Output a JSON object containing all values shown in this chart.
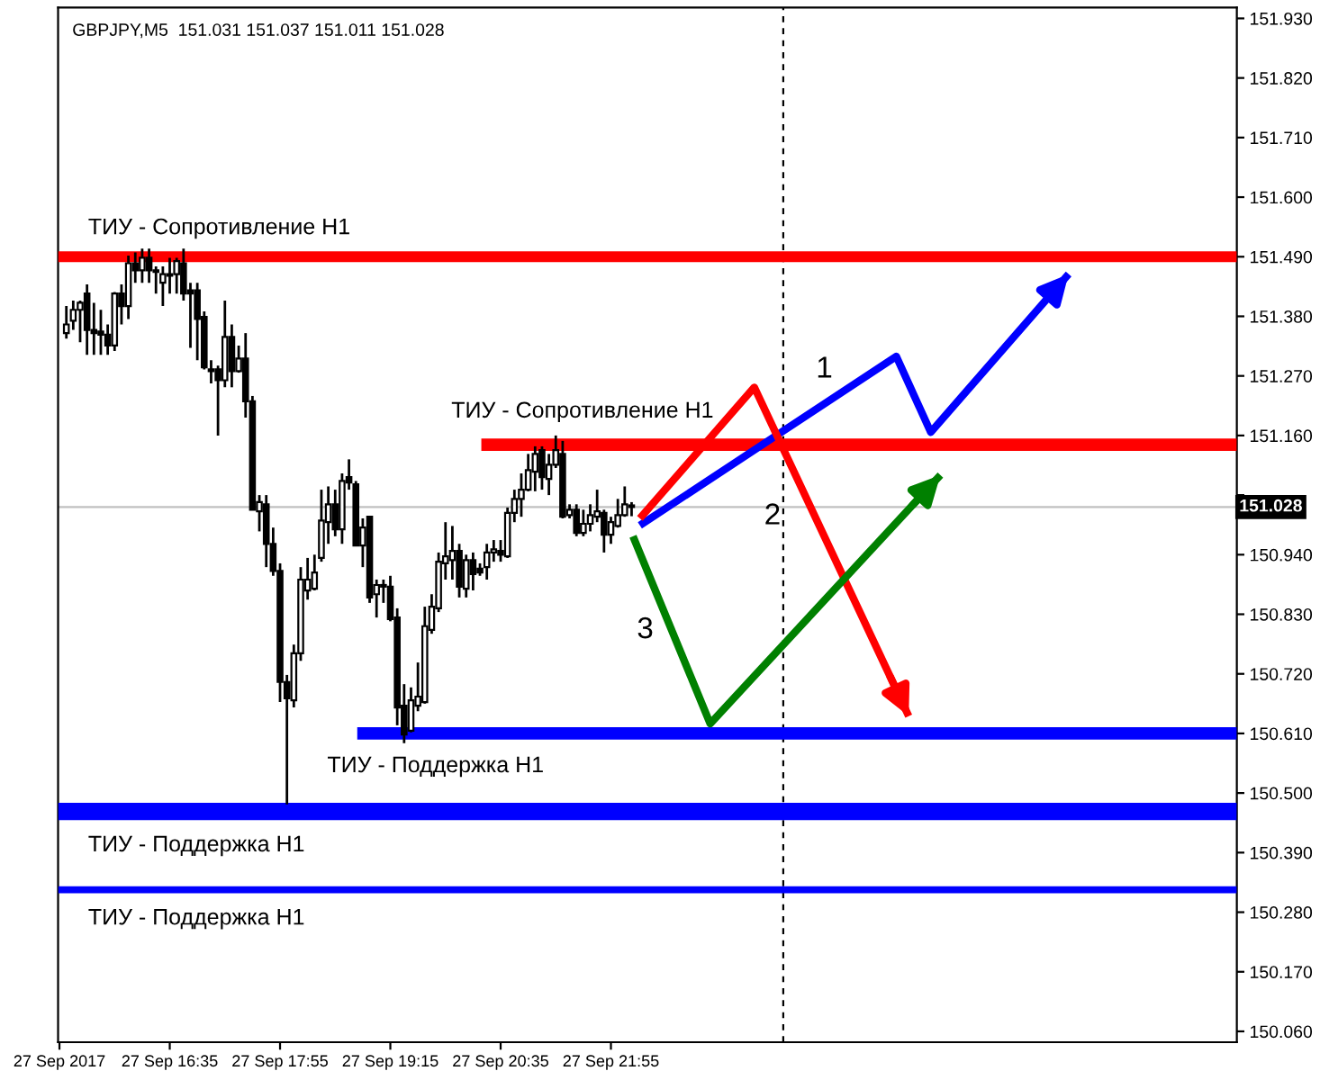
{
  "chart_data": {
    "type": "candlestick",
    "title": "GBPJPY,M5  151.031 151.037 151.011 151.028",
    "series": [
      {
        "color": "#000000",
        "x": [
          "2017-09-27T15:20",
          "2017-09-27T15:25",
          "2017-09-27T15:30",
          "2017-09-27T15:35",
          "2017-09-27T15:40",
          "2017-09-27T15:45",
          "2017-09-27T15:50",
          "2017-09-27T15:55",
          "2017-09-27T16:00",
          "2017-09-27T16:05",
          "2017-09-27T16:10",
          "2017-09-27T16:15",
          "2017-09-27T16:20",
          "2017-09-27T16:25",
          "2017-09-27T16:30",
          "2017-09-27T16:35",
          "2017-09-27T16:40",
          "2017-09-27T16:45",
          "2017-09-27T16:50",
          "2017-09-27T16:55",
          "2017-09-27T17:00",
          "2017-09-27T17:05",
          "2017-09-27T17:10",
          "2017-09-27T17:15",
          "2017-09-27T17:20",
          "2017-09-27T17:25",
          "2017-09-27T17:30",
          "2017-09-27T17:35",
          "2017-09-27T17:40",
          "2017-09-27T17:45",
          "2017-09-27T17:50",
          "2017-09-27T17:55",
          "2017-09-27T18:00",
          "2017-09-27T18:05",
          "2017-09-27T18:10",
          "2017-09-27T18:15",
          "2017-09-27T18:20",
          "2017-09-27T18:25",
          "2017-09-27T18:30",
          "2017-09-27T18:35",
          "2017-09-27T18:40",
          "2017-09-27T18:45",
          "2017-09-27T18:50",
          "2017-09-27T18:55",
          "2017-09-27T19:00",
          "2017-09-27T19:05",
          "2017-09-27T19:10",
          "2017-09-27T19:15",
          "2017-09-27T19:20",
          "2017-09-27T19:25",
          "2017-09-27T19:30",
          "2017-09-27T19:35",
          "2017-09-27T19:40",
          "2017-09-27T19:45",
          "2017-09-27T19:50",
          "2017-09-27T19:55",
          "2017-09-27T20:00",
          "2017-09-27T20:05",
          "2017-09-27T20:10",
          "2017-09-27T20:15",
          "2017-09-27T20:20",
          "2017-09-27T20:25",
          "2017-09-27T20:30",
          "2017-09-27T20:35",
          "2017-09-27T20:40",
          "2017-09-27T20:45",
          "2017-09-27T20:50",
          "2017-09-27T20:55",
          "2017-09-27T21:00",
          "2017-09-27T21:05",
          "2017-09-27T21:10",
          "2017-09-27T21:15",
          "2017-09-27T21:20",
          "2017-09-27T21:25",
          "2017-09-27T21:30",
          "2017-09-27T21:35",
          "2017-09-27T21:40",
          "2017-09-27T21:45",
          "2017-09-27T21:50",
          "2017-09-27T21:55",
          "2017-09-27T22:00",
          "2017-09-27T22:05",
          "2017-09-27T22:10"
        ],
        "ohlc": [
          [
            151.349,
            151.399,
            151.339,
            151.365
          ],
          [
            151.372,
            151.409,
            151.355,
            151.392
          ],
          [
            151.392,
            151.409,
            151.332,
            151.405
          ],
          [
            151.422,
            151.439,
            151.309,
            151.355
          ],
          [
            151.355,
            151.405,
            151.309,
            151.349
          ],
          [
            151.352,
            151.392,
            151.309,
            151.346
          ],
          [
            151.346,
            151.365,
            151.309,
            151.326
          ],
          [
            151.326,
            151.425,
            151.316,
            151.422
          ],
          [
            151.422,
            151.439,
            151.365,
            151.399
          ],
          [
            151.399,
            151.492,
            151.375,
            151.478
          ],
          [
            151.478,
            151.498,
            151.442,
            151.465
          ],
          [
            151.465,
            151.505,
            151.442,
            151.488
          ],
          [
            151.488,
            151.505,
            151.442,
            151.465
          ],
          [
            151.465,
            151.472,
            151.422,
            151.462
          ],
          [
            151.442,
            151.472,
            151.399,
            151.458
          ],
          [
            151.455,
            151.488,
            151.422,
            151.458
          ],
          [
            151.458,
            151.488,
            151.422,
            151.482
          ],
          [
            151.478,
            151.505,
            151.409,
            151.422
          ],
          [
            151.428,
            151.442,
            151.322,
            151.422
          ],
          [
            151.428,
            151.442,
            151.299,
            151.375
          ],
          [
            151.379,
            151.389,
            151.282,
            151.286
          ],
          [
            151.282,
            151.299,
            151.256,
            151.279
          ],
          [
            151.282,
            151.289,
            151.16,
            151.262
          ],
          [
            151.262,
            151.409,
            151.249,
            151.342
          ],
          [
            151.342,
            151.365,
            151.249,
            151.279
          ],
          [
            151.279,
            151.326,
            151.276,
            151.302
          ],
          [
            151.302,
            151.349,
            151.193,
            151.223
          ],
          [
            151.223,
            151.233,
            151.023,
            151.023
          ],
          [
            151.02,
            151.05,
            150.983,
            151.037
          ],
          [
            151.033,
            151.05,
            150.917,
            150.96
          ],
          [
            150.96,
            150.99,
            150.901,
            150.91
          ],
          [
            150.91,
            150.924,
            150.668,
            150.705
          ],
          [
            150.705,
            150.718,
            150.479,
            150.675
          ],
          [
            150.671,
            150.774,
            150.658,
            150.758
          ],
          [
            150.758,
            150.917,
            150.744,
            150.894
          ],
          [
            150.874,
            150.934,
            150.857,
            150.894
          ],
          [
            150.877,
            150.94,
            150.874,
            150.907
          ],
          [
            150.934,
            151.06,
            150.927,
            151.003
          ],
          [
            151.0,
            151.066,
            150.96,
            151.033
          ],
          [
            151.033,
            151.06,
            150.974,
            150.987
          ],
          [
            150.987,
            151.09,
            150.96,
            151.076
          ],
          [
            151.083,
            151.116,
            151.06,
            151.073
          ],
          [
            151.07,
            151.076,
            150.957,
            150.957
          ],
          [
            150.957,
            151.007,
            150.917,
            150.99
          ],
          [
            151.01,
            151.01,
            150.851,
            150.861
          ],
          [
            150.867,
            150.894,
            150.824,
            150.884
          ],
          [
            150.884,
            150.894,
            150.851,
            150.881
          ],
          [
            150.881,
            150.901,
            150.817,
            150.821
          ],
          [
            150.824,
            150.841,
            150.625,
            150.658
          ],
          [
            150.661,
            150.701,
            150.592,
            150.608
          ],
          [
            150.615,
            150.695,
            150.612,
            150.671
          ],
          [
            150.661,
            150.741,
            150.651,
            150.678
          ],
          [
            150.668,
            150.844,
            150.665,
            150.808
          ],
          [
            150.801,
            150.867,
            150.794,
            150.844
          ],
          [
            150.841,
            150.944,
            150.834,
            150.927
          ],
          [
            150.924,
            151.0,
            150.894,
            150.937
          ],
          [
            150.93,
            150.993,
            150.894,
            150.947
          ],
          [
            150.947,
            150.96,
            150.861,
            150.881
          ],
          [
            150.877,
            150.94,
            150.861,
            150.93
          ],
          [
            150.93,
            150.944,
            150.874,
            150.904
          ],
          [
            150.914,
            150.924,
            150.901,
            150.907
          ],
          [
            150.917,
            150.96,
            150.894,
            150.944
          ],
          [
            150.944,
            150.967,
            150.927,
            150.95
          ],
          [
            150.947,
            150.967,
            150.927,
            150.94
          ],
          [
            150.937,
            151.027,
            150.934,
            151.017
          ],
          [
            151.017,
            151.06,
            151.0,
            151.043
          ],
          [
            151.043,
            151.09,
            151.01,
            151.06
          ],
          [
            151.06,
            151.126,
            151.057,
            151.096
          ],
          [
            151.093,
            151.14,
            151.057,
            151.126
          ],
          [
            151.133,
            151.14,
            151.06,
            151.083
          ],
          [
            151.08,
            151.126,
            151.05,
            151.106
          ],
          [
            151.106,
            151.16,
            151.1,
            151.133
          ],
          [
            151.126,
            151.15,
            151.007,
            151.01
          ],
          [
            151.013,
            151.033,
            151.007,
            151.023
          ],
          [
            151.023,
            151.033,
            150.974,
            150.98
          ],
          [
            150.98,
            151.023,
            150.974,
            150.997
          ],
          [
            150.997,
            151.033,
            150.983,
            151.013
          ],
          [
            151.01,
            151.06,
            151.0,
            151.02
          ],
          [
            151.017,
            151.023,
            150.944,
            150.977
          ],
          [
            150.977,
            151.01,
            150.96,
            151.0
          ],
          [
            150.993,
            151.043,
            150.99,
            151.013
          ],
          [
            151.013,
            151.066,
            151.01,
            151.033
          ],
          [
            151.031,
            151.037,
            151.011,
            151.028
          ]
        ]
      },
      {
        "type": "line",
        "name": "ТИУ - Сопротивление H1",
        "color": "#ff0000",
        "x": [
          "2017-09-27T20:21",
          "2017-09-28T05:29"
        ],
        "values": [
          151.143,
          151.143
        ]
      },
      {
        "type": "line",
        "name": "ТИУ - Поддержка H1",
        "color": "#0000ff",
        "x": [
          "2017-09-27T18:51",
          "2017-09-28T05:29"
        ],
        "values": [
          150.61,
          150.61
        ]
      },
      {
        "type": "line",
        "color": "#0000ff",
        "x": [
          "2017-09-27T22:16",
          "2017-09-28T01:22",
          "2017-09-28T01:47",
          "2017-09-28T03:27"
        ],
        "values": [
          150.994,
          151.306,
          151.166,
          151.458
        ]
      },
      {
        "type": "line",
        "color": "#ff0000",
        "x": [
          "2017-09-27T22:16",
          "2017-09-27T23:39",
          "2017-09-28T01:31"
        ],
        "values": [
          151.007,
          151.249,
          150.642
        ]
      },
      {
        "type": "line",
        "color": "#008000",
        "x": [
          "2017-09-27T22:11",
          "2017-09-27T23:07",
          "2017-09-28T01:54"
        ],
        "values": [
          150.974,
          150.628,
          151.087
        ]
      }
    ],
    "bands": [
      {
        "axis": "y",
        "from": 151.48,
        "to": 151.5,
        "color": "#ff0000",
        "label": "ТИУ - Сопротивление H1"
      },
      {
        "axis": "y",
        "from": 150.45,
        "to": 150.482,
        "color": "#0000ff",
        "label": "ТИУ - Поддержка H1"
      },
      {
        "axis": "y",
        "from": 150.315,
        "to": 150.328,
        "color": "#0000ff",
        "label": "ТИУ - Поддержка H1"
      }
    ],
    "ref_lines": [
      {
        "axis": "x",
        "value": "2017-09-28T00:00",
        "color": "#000000",
        "line_style": "dashed"
      },
      {
        "axis": "y",
        "value": 151.028,
        "label": "151.028",
        "color": "#c0c0c0",
        "line_style": "solid"
      }
    ],
    "annotations": [
      "1",
      "2",
      "3"
    ],
    "xlim": [
      "2017-09-27T15:14",
      "2017-09-28T05:29"
    ],
    "xticks": [
      {
        "value": "2017-09-27T15:15",
        "label": "27 Sep 2017"
      },
      {
        "value": "2017-09-27T16:35",
        "label": "27 Sep 16:35"
      },
      {
        "value": "2017-09-27T17:55",
        "label": "27 Sep 17:55"
      },
      {
        "value": "2017-09-27T19:15",
        "label": "27 Sep 19:15"
      },
      {
        "value": "2017-09-27T20:35",
        "label": "27 Sep 20:35"
      },
      {
        "value": "2017-09-27T21:55",
        "label": "27 Sep 21:55"
      }
    ],
    "ylim": [
      150.04,
      151.95
    ],
    "yticks": [
      {
        "value": 151.93,
        "label": "151.930"
      },
      {
        "value": 151.82,
        "label": "151.820"
      },
      {
        "value": 151.71,
        "label": "151.710"
      },
      {
        "value": 151.6,
        "label": "151.600"
      },
      {
        "value": 151.49,
        "label": "151.490"
      },
      {
        "value": 151.38,
        "label": "151.380"
      },
      {
        "value": 151.27,
        "label": "151.270"
      },
      {
        "value": 151.16,
        "label": "151.160"
      },
      {
        "value": 151.05,
        "label": null
      },
      {
        "value": 150.94,
        "label": "150.940"
      },
      {
        "value": 150.83,
        "label": "150.830"
      },
      {
        "value": 150.72,
        "label": "150.720"
      },
      {
        "value": 150.61,
        "label": "150.610"
      },
      {
        "value": 150.5,
        "label": "150.500"
      },
      {
        "value": 150.39,
        "label": "150.390"
      },
      {
        "value": 150.28,
        "label": "150.280"
      },
      {
        "value": 150.17,
        "label": "150.170"
      },
      {
        "value": 150.06,
        "label": "150.060"
      }
    ],
    "grid": false,
    "legend": false
  }
}
